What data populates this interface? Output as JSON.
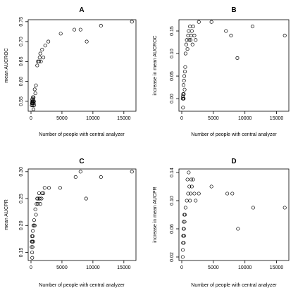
{
  "chart_data": [
    {
      "type": "scatter",
      "title": "A",
      "xlabel": "Number of people with central analyzer",
      "ylabel": "mean AUCROC",
      "xlim": [
        0,
        16500
      ],
      "ylim": [
        0.525,
        0.755
      ],
      "xticks": [
        0,
        5000,
        10000,
        15000
      ],
      "xtick_labels": [
        "0",
        "5000",
        "10000",
        "15000"
      ],
      "yticks": [
        0.55,
        0.6,
        0.65,
        0.7,
        0.75
      ],
      "ytick_labels": [
        "0.55",
        "0.60",
        "0.65",
        "0.70",
        "0.75"
      ],
      "x": [
        120,
        150,
        180,
        200,
        220,
        250,
        280,
        300,
        320,
        350,
        380,
        400,
        420,
        450,
        480,
        500,
        600,
        700,
        800,
        1000,
        1100,
        1300,
        1400,
        1500,
        1600,
        1800,
        2000,
        2300,
        2800,
        4800,
        7000,
        8000,
        9000,
        11300,
        16300
      ],
      "y": [
        0.54,
        0.545,
        0.55,
        0.555,
        0.545,
        0.54,
        0.55,
        0.56,
        0.545,
        0.55,
        0.555,
        0.53,
        0.56,
        0.545,
        0.55,
        0.54,
        0.58,
        0.57,
        0.59,
        0.64,
        0.65,
        0.65,
        0.66,
        0.67,
        0.65,
        0.68,
        0.66,
        0.69,
        0.7,
        0.72,
        0.73,
        0.73,
        0.7,
        0.74,
        0.75
      ]
    },
    {
      "type": "scatter",
      "title": "B",
      "xlabel": "Number of people with central analyzer",
      "ylabel": "increase in mean AUCROC",
      "xlim": [
        0,
        16500
      ],
      "ylim": [
        -0.028,
        0.175
      ],
      "xticks": [
        0,
        5000,
        10000,
        15000
      ],
      "xtick_labels": [
        "0",
        "5000",
        "10000",
        "15000"
      ],
      "yticks": [
        0.0,
        0.05,
        0.1,
        0.15
      ],
      "ytick_labels": [
        "0.00",
        "0.05",
        "0.10",
        "0.15"
      ],
      "x": [
        150,
        180,
        200,
        220,
        250,
        280,
        300,
        320,
        350,
        400,
        450,
        500,
        550,
        600,
        700,
        800,
        900,
        1000,
        1100,
        1200,
        1300,
        1400,
        1500,
        1600,
        1700,
        1800,
        2000,
        2200,
        2700,
        4700,
        7000,
        7800,
        8800,
        11200,
        16300
      ],
      "y": [
        0.0,
        0.005,
        -0.02,
        0.01,
        0.0,
        0.03,
        0.0,
        0.01,
        0.04,
        0.05,
        0.02,
        0.06,
        0.07,
        0.1,
        0.12,
        0.13,
        0.11,
        0.14,
        0.15,
        0.13,
        0.16,
        0.13,
        0.14,
        0.15,
        0.12,
        0.16,
        0.14,
        0.13,
        0.17,
        0.17,
        0.15,
        0.14,
        0.09,
        0.16,
        0.14
      ]
    },
    {
      "type": "scatter",
      "title": "C",
      "xlabel": "Number of people with central analyzer",
      "ylabel": "mean AUCPR",
      "xlim": [
        0,
        16500
      ],
      "ylim": [
        0.135,
        0.305
      ],
      "xticks": [
        0,
        5000,
        10000,
        15000
      ],
      "xtick_labels": [
        "0",
        "5000",
        "10000",
        "15000"
      ],
      "yticks": [
        0.15,
        0.2,
        0.25,
        0.3
      ],
      "ytick_labels": [
        "0.15",
        "0.20",
        "0.25",
        "0.30"
      ],
      "x": [
        100,
        120,
        150,
        180,
        200,
        220,
        250,
        280,
        300,
        350,
        400,
        450,
        500,
        600,
        700,
        800,
        900,
        1000,
        1100,
        1200,
        1300,
        1400,
        1500,
        1700,
        1800,
        2000,
        2200,
        2900,
        4700,
        7200,
        8000,
        8900,
        11300,
        16300
      ],
      "y": [
        0.16,
        0.17,
        0.18,
        0.15,
        0.14,
        0.17,
        0.16,
        0.18,
        0.19,
        0.17,
        0.2,
        0.2,
        0.21,
        0.2,
        0.23,
        0.22,
        0.24,
        0.25,
        0.24,
        0.25,
        0.26,
        0.25,
        0.24,
        0.25,
        0.26,
        0.26,
        0.27,
        0.27,
        0.27,
        0.29,
        0.3,
        0.25,
        0.29,
        0.3
      ]
    },
    {
      "type": "scatter",
      "title": "D",
      "xlabel": "Number of people with central analyzer",
      "ylabel": "increase in mean AUCPR",
      "xlim": [
        0,
        16500
      ],
      "ylim": [
        0.015,
        0.145
      ],
      "xticks": [
        0,
        5000,
        10000,
        15000
      ],
      "xtick_labels": [
        "0",
        "5000",
        "10000",
        "15000"
      ],
      "yticks": [
        0.02,
        0.06,
        0.1,
        0.14
      ],
      "ytick_labels": [
        "0.02",
        "0.06",
        "0.10",
        "0.14"
      ],
      "x": [
        150,
        180,
        200,
        220,
        250,
        280,
        300,
        320,
        350,
        380,
        400,
        450,
        500,
        600,
        800,
        900,
        1000,
        1100,
        1200,
        1300,
        1400,
        1500,
        1600,
        1800,
        2000,
        2200,
        2700,
        4700,
        7200,
        8000,
        8900,
        11300,
        16300
      ],
      "y": [
        0.02,
        0.03,
        0.04,
        0.05,
        0.05,
        0.06,
        0.07,
        0.04,
        0.06,
        0.05,
        0.08,
        0.07,
        0.08,
        0.09,
        0.1,
        0.13,
        0.11,
        0.14,
        0.12,
        0.1,
        0.11,
        0.13,
        0.12,
        0.13,
        0.11,
        0.1,
        0.11,
        0.12,
        0.11,
        0.11,
        0.06,
        0.09,
        0.09
      ]
    }
  ]
}
